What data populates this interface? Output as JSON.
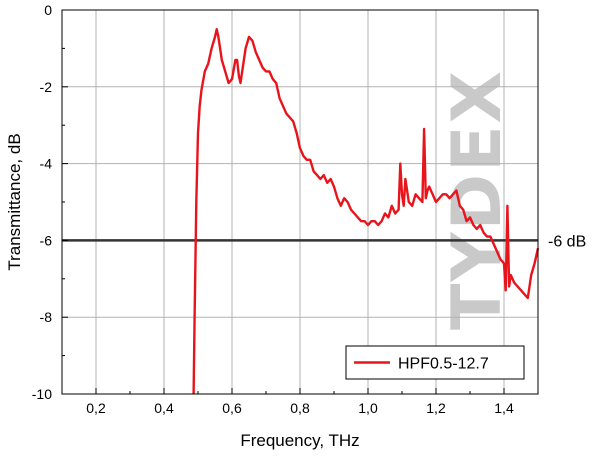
{
  "chart_data": {
    "type": "line",
    "xlabel": "Frequency, THz",
    "ylabel": "Transmittance, dB",
    "xlim": [
      0.1,
      1.5
    ],
    "ylim": [
      -10,
      0
    ],
    "x_ticks": [
      0.2,
      0.4,
      0.6,
      0.8,
      1.0,
      1.2,
      1.4
    ],
    "x_tick_labels": [
      "0,2",
      "0,4",
      "0,6",
      "0,8",
      "1,0",
      "1,2",
      "1,4"
    ],
    "y_ticks": [
      0,
      -2,
      -4,
      -6,
      -8,
      -10
    ],
    "y_tick_labels": [
      "0",
      "-2",
      "-4",
      "-6",
      "-8",
      "-10"
    ],
    "grid": true,
    "legend_position": "bottom-right",
    "reference_line": {
      "y": -6,
      "label": "-6 dB",
      "color": "#333333"
    },
    "watermark": "TYDEX",
    "series": [
      {
        "name": "HPF0.5-12.7",
        "color": "#e8141c",
        "x": [
          0.487,
          0.49,
          0.495,
          0.5,
          0.505,
          0.51,
          0.52,
          0.53,
          0.54,
          0.55,
          0.555,
          0.56,
          0.565,
          0.57,
          0.58,
          0.59,
          0.6,
          0.61,
          0.615,
          0.62,
          0.625,
          0.63,
          0.64,
          0.65,
          0.66,
          0.67,
          0.68,
          0.69,
          0.7,
          0.71,
          0.72,
          0.73,
          0.74,
          0.75,
          0.76,
          0.77,
          0.78,
          0.79,
          0.8,
          0.81,
          0.82,
          0.83,
          0.84,
          0.85,
          0.86,
          0.87,
          0.88,
          0.89,
          0.9,
          0.91,
          0.92,
          0.93,
          0.94,
          0.95,
          0.96,
          0.97,
          0.98,
          0.99,
          1.0,
          1.01,
          1.02,
          1.03,
          1.04,
          1.05,
          1.06,
          1.07,
          1.08,
          1.09,
          1.095,
          1.1,
          1.105,
          1.11,
          1.12,
          1.13,
          1.14,
          1.15,
          1.16,
          1.165,
          1.17,
          1.175,
          1.18,
          1.19,
          1.2,
          1.21,
          1.22,
          1.23,
          1.24,
          1.25,
          1.26,
          1.27,
          1.28,
          1.29,
          1.3,
          1.31,
          1.32,
          1.33,
          1.34,
          1.35,
          1.36,
          1.37,
          1.38,
          1.39,
          1.4,
          1.405,
          1.41,
          1.415,
          1.42,
          1.43,
          1.44,
          1.45,
          1.46,
          1.47,
          1.48,
          1.49,
          1.5
        ],
        "y": [
          -10.0,
          -8.0,
          -5.0,
          -3.2,
          -2.5,
          -2.1,
          -1.6,
          -1.4,
          -1.0,
          -0.7,
          -0.5,
          -0.7,
          -1.0,
          -1.3,
          -1.6,
          -1.9,
          -1.8,
          -1.3,
          -1.3,
          -1.7,
          -1.9,
          -1.6,
          -1.0,
          -0.7,
          -0.8,
          -1.1,
          -1.3,
          -1.5,
          -1.6,
          -1.6,
          -1.8,
          -1.9,
          -2.3,
          -2.5,
          -2.7,
          -2.8,
          -2.9,
          -3.2,
          -3.6,
          -3.8,
          -3.9,
          -3.9,
          -4.2,
          -4.3,
          -4.4,
          -4.3,
          -4.5,
          -4.4,
          -4.6,
          -4.9,
          -5.1,
          -4.9,
          -5.0,
          -5.2,
          -5.3,
          -5.4,
          -5.5,
          -5.5,
          -5.6,
          -5.5,
          -5.5,
          -5.6,
          -5.5,
          -5.3,
          -5.4,
          -5.1,
          -5.3,
          -5.2,
          -4.0,
          -4.8,
          -5.1,
          -4.4,
          -5.0,
          -5.1,
          -4.8,
          -4.9,
          -5.0,
          -3.1,
          -4.9,
          -4.7,
          -4.6,
          -4.8,
          -5.0,
          -4.9,
          -4.8,
          -4.8,
          -4.9,
          -4.8,
          -4.7,
          -5.1,
          -5.2,
          -5.5,
          -5.4,
          -5.6,
          -5.7,
          -5.6,
          -5.8,
          -5.9,
          -5.9,
          -6.1,
          -6.3,
          -6.5,
          -6.6,
          -7.3,
          -5.1,
          -7.2,
          -6.9,
          -7.1,
          -7.2,
          -7.3,
          -7.4,
          -7.5,
          -6.9,
          -6.6,
          -6.2
        ]
      }
    ]
  }
}
